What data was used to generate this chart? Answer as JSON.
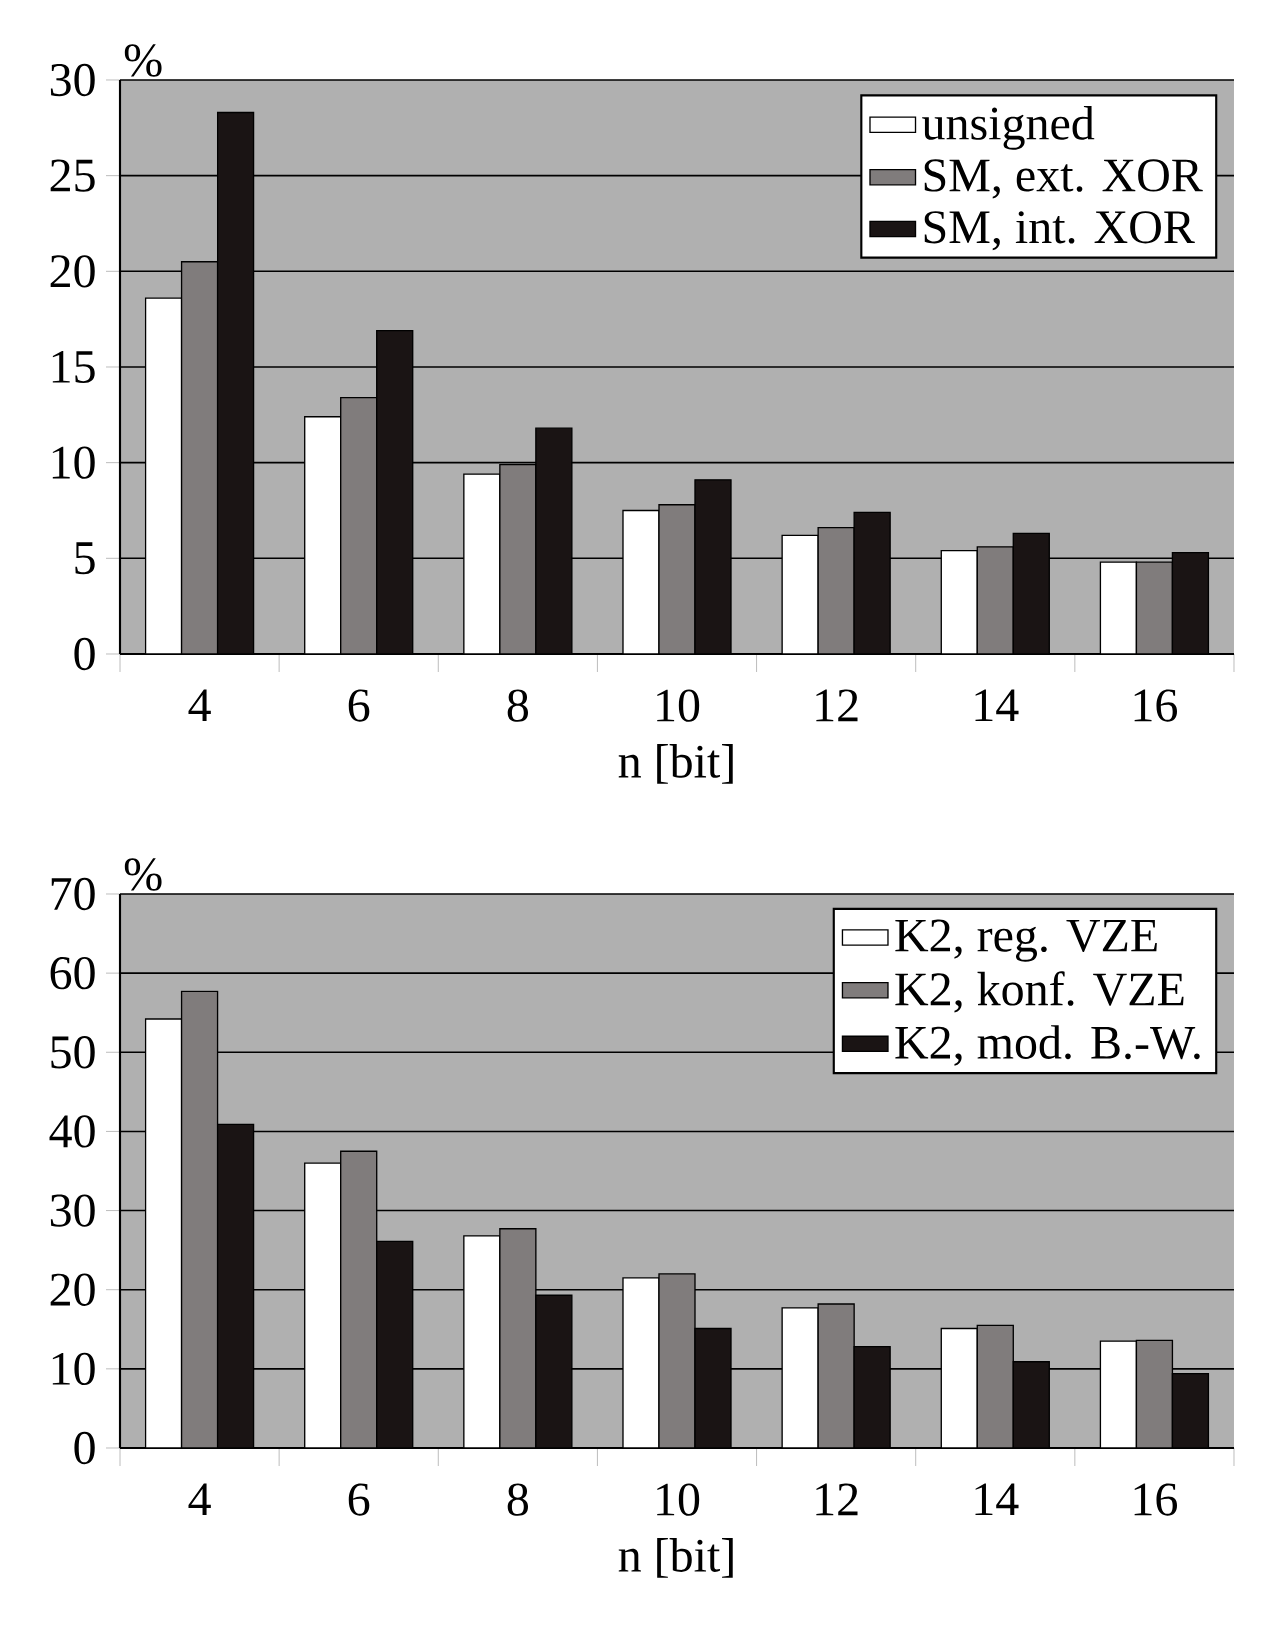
{
  "chart_data": [
    {
      "type": "bar",
      "xlabel": "n [bit]",
      "ylabel": "%",
      "categories": [
        "4",
        "6",
        "8",
        "10",
        "12",
        "14",
        "16"
      ],
      "ylim": [
        0,
        30
      ],
      "yticks": [
        0,
        5,
        10,
        15,
        20,
        25,
        30
      ],
      "grid": "y",
      "legend": "top right",
      "series": [
        {
          "name": "unsigned",
          "color": "#ffffff",
          "values": [
            18.6,
            12.4,
            9.4,
            7.5,
            6.2,
            5.4,
            4.8
          ]
        },
        {
          "name": "SM, ext. XOR",
          "color": "#807c7c",
          "values": [
            20.5,
            13.4,
            9.9,
            7.8,
            6.6,
            5.6,
            4.8
          ]
        },
        {
          "name": "SM, int. XOR",
          "color": "#1a1414",
          "values": [
            28.3,
            16.9,
            11.8,
            9.1,
            7.4,
            6.3,
            5.3
          ]
        }
      ]
    },
    {
      "type": "bar",
      "xlabel": "n [bit]",
      "ylabel": "%",
      "categories": [
        "4",
        "6",
        "8",
        "10",
        "12",
        "14",
        "16"
      ],
      "ylim": [
        0,
        70
      ],
      "yticks": [
        0,
        10,
        20,
        30,
        40,
        50,
        60,
        70
      ],
      "grid": "y",
      "legend": "top right",
      "series": [
        {
          "name": "K2, reg. VZE",
          "color": "#ffffff",
          "values": [
            54.2,
            36.0,
            26.8,
            21.5,
            17.7,
            15.1,
            13.5
          ]
        },
        {
          "name": "K2, konf. VZE",
          "color": "#807c7c",
          "values": [
            57.7,
            37.5,
            27.7,
            22.0,
            18.2,
            15.5,
            13.6
          ]
        },
        {
          "name": "K2, mod. B.-W.",
          "color": "#1a1414",
          "values": [
            40.9,
            26.1,
            19.3,
            15.1,
            12.8,
            10.9,
            9.4
          ]
        }
      ]
    }
  ]
}
